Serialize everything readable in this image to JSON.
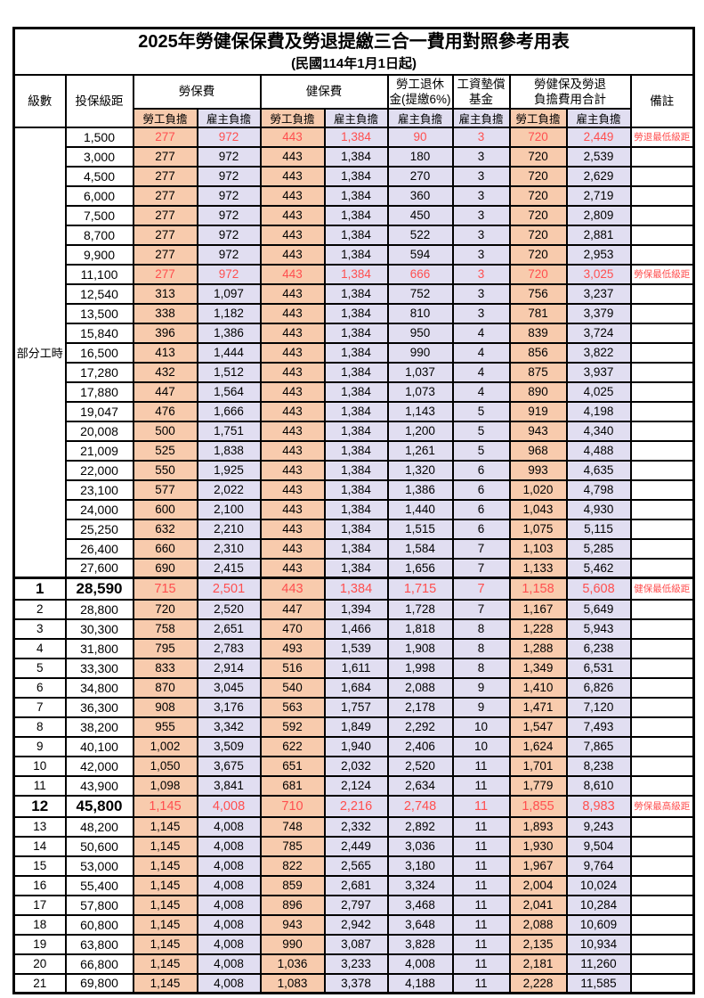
{
  "title": "2025年勞健保保費及勞退提繳三合一費用對照參考用表",
  "subtitle": "(民國114年1月1日起)",
  "header": {
    "level": "級數",
    "bracket": "投保級距",
    "labor_insurance": "勞保費",
    "health_insurance": "健保費",
    "pension_line1": "勞工退休",
    "pension_line2": "金(提繳6%)",
    "wage_fund_line1": "工資墊償",
    "wage_fund_line2": "基金",
    "total_line1": "勞健保及勞退",
    "total_line2": "負擔費用合計",
    "employee": "勞工負擔",
    "employer": "雇主負擔",
    "remark": "備註"
  },
  "part_time_label": "部分工時",
  "colors": {
    "employee_bg": "#F8CBAD",
    "employer_bg": "#E1DEF1",
    "highlight_red": "#FF4F4F"
  },
  "rows": [
    {
      "level": null,
      "bracket": "1,500",
      "values": [
        "277",
        "972",
        "443",
        "1,384",
        "90",
        "3",
        "720",
        "2,449"
      ],
      "remark": "勞退最低級距",
      "key_bracket": false
    },
    {
      "level": null,
      "bracket": "3,000",
      "values": [
        "277",
        "972",
        "443",
        "1,384",
        "180",
        "3",
        "720",
        "2,539"
      ],
      "remark": "",
      "key_bracket": false
    },
    {
      "level": null,
      "bracket": "4,500",
      "values": [
        "277",
        "972",
        "443",
        "1,384",
        "270",
        "3",
        "720",
        "2,629"
      ],
      "remark": "",
      "key_bracket": false
    },
    {
      "level": null,
      "bracket": "6,000",
      "values": [
        "277",
        "972",
        "443",
        "1,384",
        "360",
        "3",
        "720",
        "2,719"
      ],
      "remark": "",
      "key_bracket": false
    },
    {
      "level": null,
      "bracket": "7,500",
      "values": [
        "277",
        "972",
        "443",
        "1,384",
        "450",
        "3",
        "720",
        "2,809"
      ],
      "remark": "",
      "key_bracket": false
    },
    {
      "level": null,
      "bracket": "8,700",
      "values": [
        "277",
        "972",
        "443",
        "1,384",
        "522",
        "3",
        "720",
        "2,881"
      ],
      "remark": "",
      "key_bracket": false
    },
    {
      "level": null,
      "bracket": "9,900",
      "values": [
        "277",
        "972",
        "443",
        "1,384",
        "594",
        "3",
        "720",
        "2,953"
      ],
      "remark": "",
      "key_bracket": false
    },
    {
      "level": null,
      "bracket": "11,100",
      "values": [
        "277",
        "972",
        "443",
        "1,384",
        "666",
        "3",
        "720",
        "3,025"
      ],
      "remark": "勞保最低級距",
      "key_bracket": false
    },
    {
      "level": null,
      "bracket": "12,540",
      "values": [
        "313",
        "1,097",
        "443",
        "1,384",
        "752",
        "3",
        "756",
        "3,237"
      ],
      "remark": "",
      "key_bracket": false
    },
    {
      "level": null,
      "bracket": "13,500",
      "values": [
        "338",
        "1,182",
        "443",
        "1,384",
        "810",
        "3",
        "781",
        "3,379"
      ],
      "remark": "",
      "key_bracket": false
    },
    {
      "level": null,
      "bracket": "15,840",
      "values": [
        "396",
        "1,386",
        "443",
        "1,384",
        "950",
        "4",
        "839",
        "3,724"
      ],
      "remark": "",
      "key_bracket": false
    },
    {
      "level": null,
      "bracket": "16,500",
      "values": [
        "413",
        "1,444",
        "443",
        "1,384",
        "990",
        "4",
        "856",
        "3,822"
      ],
      "remark": "",
      "key_bracket": false
    },
    {
      "level": null,
      "bracket": "17,280",
      "values": [
        "432",
        "1,512",
        "443",
        "1,384",
        "1,037",
        "4",
        "875",
        "3,937"
      ],
      "remark": "",
      "key_bracket": false
    },
    {
      "level": null,
      "bracket": "17,880",
      "values": [
        "447",
        "1,564",
        "443",
        "1,384",
        "1,073",
        "4",
        "890",
        "4,025"
      ],
      "remark": "",
      "key_bracket": false
    },
    {
      "level": null,
      "bracket": "19,047",
      "values": [
        "476",
        "1,666",
        "443",
        "1,384",
        "1,143",
        "5",
        "919",
        "4,198"
      ],
      "remark": "",
      "key_bracket": false
    },
    {
      "level": null,
      "bracket": "20,008",
      "values": [
        "500",
        "1,751",
        "443",
        "1,384",
        "1,200",
        "5",
        "943",
        "4,340"
      ],
      "remark": "",
      "key_bracket": false
    },
    {
      "level": null,
      "bracket": "21,009",
      "values": [
        "525",
        "1,838",
        "443",
        "1,384",
        "1,261",
        "5",
        "968",
        "4,488"
      ],
      "remark": "",
      "key_bracket": false
    },
    {
      "level": null,
      "bracket": "22,000",
      "values": [
        "550",
        "1,925",
        "443",
        "1,384",
        "1,320",
        "6",
        "993",
        "4,635"
      ],
      "remark": "",
      "key_bracket": false
    },
    {
      "level": null,
      "bracket": "23,100",
      "values": [
        "577",
        "2,022",
        "443",
        "1,384",
        "1,386",
        "6",
        "1,020",
        "4,798"
      ],
      "remark": "",
      "key_bracket": false
    },
    {
      "level": null,
      "bracket": "24,000",
      "values": [
        "600",
        "2,100",
        "443",
        "1,384",
        "1,440",
        "6",
        "1,043",
        "4,930"
      ],
      "remark": "",
      "key_bracket": false
    },
    {
      "level": null,
      "bracket": "25,250",
      "values": [
        "632",
        "2,210",
        "443",
        "1,384",
        "1,515",
        "6",
        "1,075",
        "5,115"
      ],
      "remark": "",
      "key_bracket": false
    },
    {
      "level": null,
      "bracket": "26,400",
      "values": [
        "660",
        "2,310",
        "443",
        "1,384",
        "1,584",
        "7",
        "1,103",
        "5,285"
      ],
      "remark": "",
      "key_bracket": false
    },
    {
      "level": null,
      "bracket": "27,600",
      "values": [
        "690",
        "2,415",
        "443",
        "1,384",
        "1,656",
        "7",
        "1,133",
        "5,462"
      ],
      "remark": "",
      "key_bracket": false
    },
    {
      "level": "1",
      "bracket": "28,590",
      "values": [
        "715",
        "2,501",
        "443",
        "1,384",
        "1,715",
        "7",
        "1,158",
        "5,608"
      ],
      "remark": "健保最低級距",
      "key_bracket": true
    },
    {
      "level": "2",
      "bracket": "28,800",
      "values": [
        "720",
        "2,520",
        "447",
        "1,394",
        "1,728",
        "7",
        "1,167",
        "5,649"
      ],
      "remark": "",
      "key_bracket": false
    },
    {
      "level": "3",
      "bracket": "30,300",
      "values": [
        "758",
        "2,651",
        "470",
        "1,466",
        "1,818",
        "8",
        "1,228",
        "5,943"
      ],
      "remark": "",
      "key_bracket": false
    },
    {
      "level": "4",
      "bracket": "31,800",
      "values": [
        "795",
        "2,783",
        "493",
        "1,539",
        "1,908",
        "8",
        "1,288",
        "6,238"
      ],
      "remark": "",
      "key_bracket": false
    },
    {
      "level": "5",
      "bracket": "33,300",
      "values": [
        "833",
        "2,914",
        "516",
        "1,611",
        "1,998",
        "8",
        "1,349",
        "6,531"
      ],
      "remark": "",
      "key_bracket": false
    },
    {
      "level": "6",
      "bracket": "34,800",
      "values": [
        "870",
        "3,045",
        "540",
        "1,684",
        "2,088",
        "9",
        "1,410",
        "6,826"
      ],
      "remark": "",
      "key_bracket": false
    },
    {
      "level": "7",
      "bracket": "36,300",
      "values": [
        "908",
        "3,176",
        "563",
        "1,757",
        "2,178",
        "9",
        "1,471",
        "7,120"
      ],
      "remark": "",
      "key_bracket": false
    },
    {
      "level": "8",
      "bracket": "38,200",
      "values": [
        "955",
        "3,342",
        "592",
        "1,849",
        "2,292",
        "10",
        "1,547",
        "7,493"
      ],
      "remark": "",
      "key_bracket": false
    },
    {
      "level": "9",
      "bracket": "40,100",
      "values": [
        "1,002",
        "3,509",
        "622",
        "1,940",
        "2,406",
        "10",
        "1,624",
        "7,865"
      ],
      "remark": "",
      "key_bracket": false
    },
    {
      "level": "10",
      "bracket": "42,000",
      "values": [
        "1,050",
        "3,675",
        "651",
        "2,032",
        "2,520",
        "11",
        "1,701",
        "8,238"
      ],
      "remark": "",
      "key_bracket": false
    },
    {
      "level": "11",
      "bracket": "43,900",
      "values": [
        "1,098",
        "3,841",
        "681",
        "2,124",
        "2,634",
        "11",
        "1,779",
        "8,610"
      ],
      "remark": "",
      "key_bracket": false
    },
    {
      "level": "12",
      "bracket": "45,800",
      "values": [
        "1,145",
        "4,008",
        "710",
        "2,216",
        "2,748",
        "11",
        "1,855",
        "8,983"
      ],
      "remark": "勞保最高級距",
      "key_bracket": true
    },
    {
      "level": "13",
      "bracket": "48,200",
      "values": [
        "1,145",
        "4,008",
        "748",
        "2,332",
        "2,892",
        "11",
        "1,893",
        "9,243"
      ],
      "remark": "",
      "key_bracket": false
    },
    {
      "level": "14",
      "bracket": "50,600",
      "values": [
        "1,145",
        "4,008",
        "785",
        "2,449",
        "3,036",
        "11",
        "1,930",
        "9,504"
      ],
      "remark": "",
      "key_bracket": false
    },
    {
      "level": "15",
      "bracket": "53,000",
      "values": [
        "1,145",
        "4,008",
        "822",
        "2,565",
        "3,180",
        "11",
        "1,967",
        "9,764"
      ],
      "remark": "",
      "key_bracket": false
    },
    {
      "level": "16",
      "bracket": "55,400",
      "values": [
        "1,145",
        "4,008",
        "859",
        "2,681",
        "3,324",
        "11",
        "2,004",
        "10,024"
      ],
      "remark": "",
      "key_bracket": false
    },
    {
      "level": "17",
      "bracket": "57,800",
      "values": [
        "1,145",
        "4,008",
        "896",
        "2,797",
        "3,468",
        "11",
        "2,041",
        "10,284"
      ],
      "remark": "",
      "key_bracket": false
    },
    {
      "level": "18",
      "bracket": "60,800",
      "values": [
        "1,145",
        "4,008",
        "943",
        "2,942",
        "3,648",
        "11",
        "2,088",
        "10,609"
      ],
      "remark": "",
      "key_bracket": false
    },
    {
      "level": "19",
      "bracket": "63,800",
      "values": [
        "1,145",
        "4,008",
        "990",
        "3,087",
        "3,828",
        "11",
        "2,135",
        "10,934"
      ],
      "remark": "",
      "key_bracket": false
    },
    {
      "level": "20",
      "bracket": "66,800",
      "values": [
        "1,145",
        "4,008",
        "1,036",
        "3,233",
        "4,008",
        "11",
        "2,181",
        "11,260"
      ],
      "remark": "",
      "key_bracket": false
    },
    {
      "level": "21",
      "bracket": "69,800",
      "values": [
        "1,145",
        "4,008",
        "1,083",
        "3,378",
        "4,188",
        "11",
        "2,228",
        "11,585"
      ],
      "remark": "",
      "key_bracket": false
    }
  ]
}
